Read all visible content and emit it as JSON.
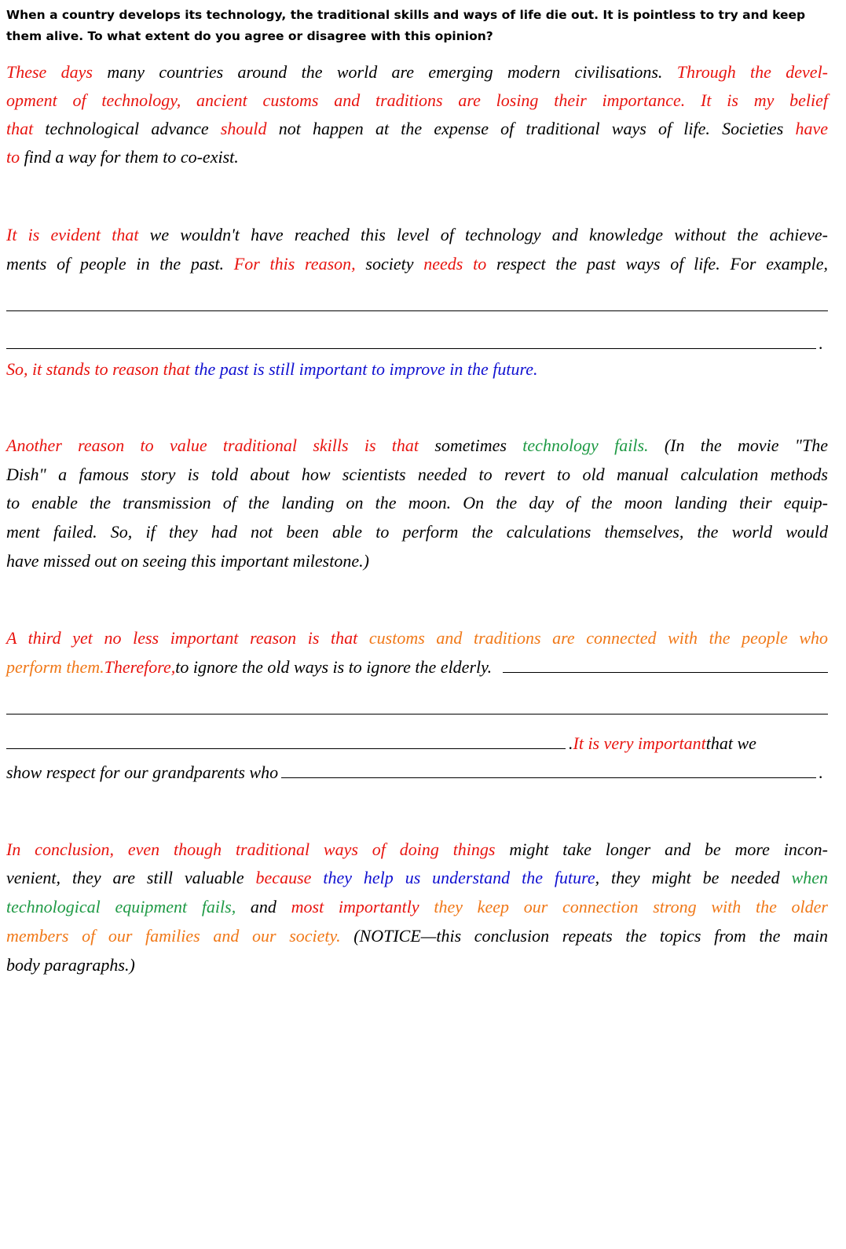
{
  "question": "When a country develops its technology, the traditional skills and ways of life die out. It is pointless to try and keep them alive.  To what extent do you agree or disagree with this opinion?",
  "paragraphs": [
    [
      [
        "These days",
        " many countries around the world are emerging modern civilisations. ",
        "Through the devel-"
      ],
      [
        "opment of technology, ancient customs and traditions are losing their importance.  It is my belief"
      ],
      [
        "that",
        " technological advance ",
        "should",
        " not happen at the expense of traditional ways of life.  Societies ",
        "have"
      ],
      [
        "to",
        " find a way for them to co-exist."
      ]
    ],
    [
      [
        "It is evident that",
        " we wouldn't have reached this level of technology and knowledge without the achieve-"
      ],
      [
        "ments of people in the past. ",
        "For this reason,",
        " society ",
        "needs to",
        " respect the past ways of life.  For example,"
      ],
      [
        "."
      ],
      [
        "So, it stands to reason that",
        " the past is still important to improve in the future."
      ]
    ],
    [
      [
        "Another reason to value traditional skills is that",
        " sometimes ",
        "technology fails.",
        "   (In the movie \"The"
      ],
      [
        "Dish\" a famous story is told about how scientists needed to revert to old manual calculation methods"
      ],
      [
        "to enable the transmission of the landing on the moon.  On the day of the moon landing their equip-"
      ],
      [
        "ment failed.  So, if they had not been able to perform the calculations themselves, the world would"
      ],
      [
        "have missed out on seeing this important milestone.)"
      ]
    ],
    [
      [
        "A third yet no less important reason is that",
        " customs and traditions are connected with the people who"
      ],
      [
        "perform them.  ",
        "Therefore,",
        " to ignore the old ways is to ignore the elderly."
      ],
      [
        ".  ",
        "It is very important",
        " that we"
      ],
      [
        "show respect for our grandparents who",
        "."
      ]
    ],
    [
      [
        "In conclusion, even though traditional ways of doing things",
        " might take longer and be more incon-"
      ],
      [
        "venient, they are still valuable ",
        "because",
        " they help us understand the future",
        ", they might be needed ",
        "when"
      ],
      [
        "technological equipment fails,",
        " and ",
        "most importantly",
        " they keep our connection strong with the older"
      ],
      [
        "members of our families and our society.",
        "  (NOTICE—this conclusion repeats the topics from the main"
      ],
      [
        "body paragraphs.)"
      ]
    ]
  ]
}
